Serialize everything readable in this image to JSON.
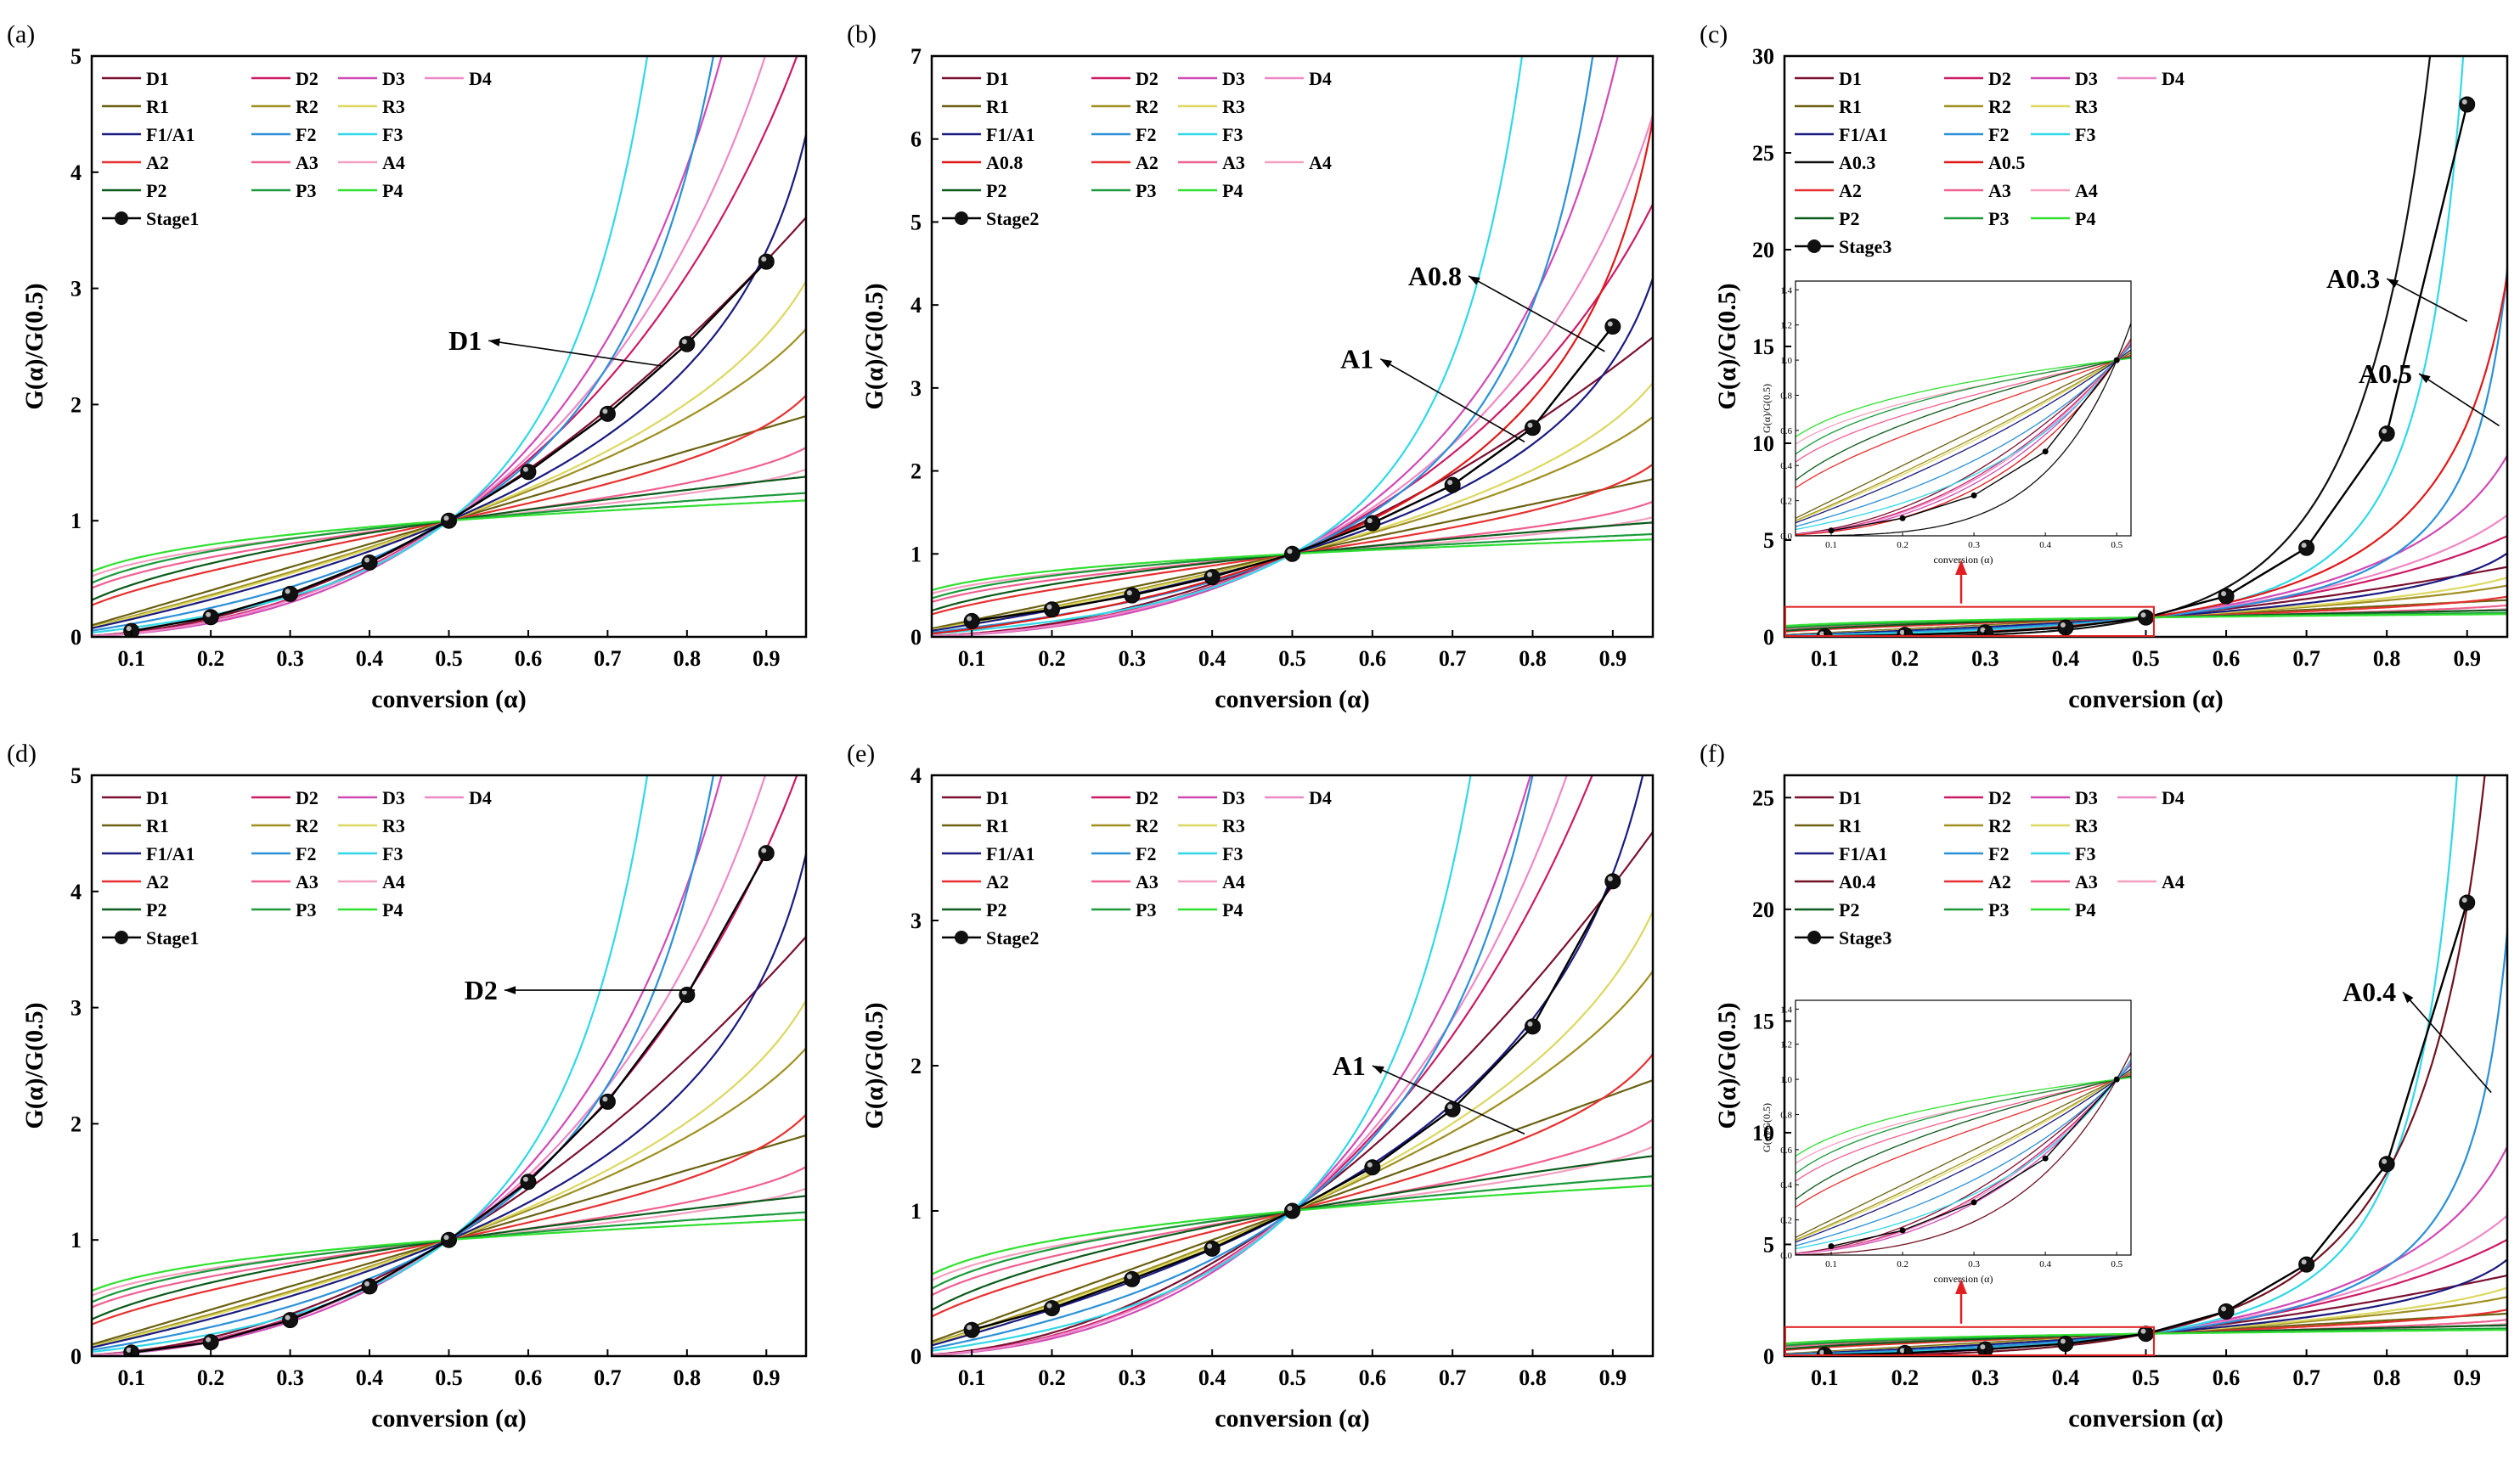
{
  "figure": {
    "colors": {
      "D1": "#7a1030",
      "D2": "#cc1a66",
      "D3": "#d04ab6",
      "D4": "#ee88c6",
      "R1": "#6a6010",
      "R2": "#a09020",
      "R3": "#dcd860",
      "F1/A1": "#1a1a80",
      "F2": "#2a90d8",
      "F3": "#30d8e8",
      "A0.3": "#101010",
      "A0.4": "#701020",
      "A0.5": "#e01818",
      "A0.8": "#e01818",
      "A2": "#e83030",
      "A3": "#f06090",
      "A4": "#f4a0c0",
      "P2": "#0a5a1a",
      "P3": "#1a9a3a",
      "P4": "#30e030",
      "stage": "#000000",
      "inset_box": "#e02020"
    },
    "x_tick_values": [
      0.1,
      0.2,
      0.3,
      0.4,
      0.5,
      0.6,
      0.7,
      0.8,
      0.9
    ],
    "x_tick_labels": [
      "0.1",
      "0.2",
      "0.3",
      "0.4",
      "0.5",
      "0.6",
      "0.7",
      "0.8",
      "0.9"
    ],
    "x_title": "conversion (α)",
    "y_title": "G(α)/G(0.5)",
    "inset_x_title": "conversion (α)",
    "inset_y_title": "G(α)/G(0.5)"
  },
  "chart_data": [
    {
      "panel": "(a)",
      "type": "line",
      "xlim": [
        0.05,
        0.95
      ],
      "ylim": [
        0,
        5
      ],
      "yticks": [
        "0",
        "1",
        "2",
        "3",
        "4",
        "5"
      ],
      "legend_rows": [
        [
          "D1",
          "D2",
          "D3",
          "D4"
        ],
        [
          "R1",
          "R2",
          "R3"
        ],
        [
          "F1/A1",
          "F2",
          "F3"
        ],
        [
          "A2",
          "A3",
          "A4"
        ],
        [
          "P2",
          "P3",
          "P4"
        ]
      ],
      "stage_label": "Stage1",
      "stage_x": [
        0.1,
        0.2,
        0.3,
        0.4,
        0.5,
        0.6,
        0.7,
        0.8,
        0.9
      ],
      "stage_y": [
        0.05,
        0.17,
        0.37,
        0.64,
        1.0,
        1.42,
        1.92,
        2.52,
        3.23
      ],
      "fit_model": "D1",
      "annotations": [
        {
          "text": "D1",
          "x": 0.55,
          "y": 2.55,
          "tx": 0.77,
          "ty": 2.33
        }
      ],
      "inset": false
    },
    {
      "panel": "(b)",
      "type": "line",
      "xlim": [
        0.05,
        0.95
      ],
      "ylim": [
        0,
        7
      ],
      "yticks": [
        "0",
        "1",
        "2",
        "3",
        "4",
        "5",
        "6",
        "7"
      ],
      "legend_rows": [
        [
          "D1",
          "D2",
          "D3",
          "D4"
        ],
        [
          "R1",
          "R2",
          "R3"
        ],
        [
          "F1/A1",
          "F2",
          "F3"
        ],
        [
          "A0.8",
          "A2",
          "A3",
          "A4"
        ],
        [
          "P2",
          "P3",
          "P4"
        ]
      ],
      "stage_label": "Stage2",
      "stage_x": [
        0.1,
        0.2,
        0.3,
        0.4,
        0.5,
        0.6,
        0.7,
        0.8,
        0.9
      ],
      "stage_y": [
        0.19,
        0.33,
        0.5,
        0.72,
        1.0,
        1.37,
        1.83,
        2.52,
        3.74
      ],
      "fit_model": "A0.8",
      "annotations": [
        {
          "text": "A0.8",
          "x": 0.72,
          "y": 4.35,
          "tx": 0.89,
          "ty": 3.44
        },
        {
          "text": "A1",
          "x": 0.61,
          "y": 3.35,
          "tx": 0.79,
          "ty": 2.35
        }
      ],
      "inset": false
    },
    {
      "panel": "(c)",
      "type": "line",
      "xlim": [
        0.05,
        0.95
      ],
      "ylim": [
        0,
        30
      ],
      "yticks": [
        "0",
        "5",
        "10",
        "15",
        "20",
        "25",
        "30"
      ],
      "legend_rows": [
        [
          "D1",
          "D2",
          "D3",
          "D4"
        ],
        [
          "R1",
          "R2",
          "R3"
        ],
        [
          "F1/A1",
          "F2",
          "F3"
        ],
        [
          "A0.3",
          "A0.5"
        ],
        [
          "A2",
          "A3",
          "A4"
        ],
        [
          "P2",
          "P3",
          "P4"
        ]
      ],
      "stage_label": "Stage3",
      "stage_x": [
        0.1,
        0.2,
        0.3,
        0.4,
        0.5,
        0.6,
        0.7,
        0.8,
        0.9
      ],
      "stage_y": [
        0.03,
        0.1,
        0.23,
        0.48,
        1.0,
        2.1,
        4.6,
        10.5,
        27.5
      ],
      "fit_model": "A0.3",
      "annotations": [
        {
          "text": "A0.3",
          "x": 0.8,
          "y": 18.5,
          "tx": 0.9,
          "ty": 16.3
        },
        {
          "text": "A0.5",
          "x": 0.84,
          "y": 13.6,
          "tx": 0.94,
          "ty": 10.9
        }
      ],
      "inset": true,
      "inset_box_ymax": 1.55
    },
    {
      "panel": "(d)",
      "type": "line",
      "xlim": [
        0.05,
        0.95
      ],
      "ylim": [
        0,
        5
      ],
      "yticks": [
        "0",
        "1",
        "2",
        "3",
        "4",
        "5"
      ],
      "legend_rows": [
        [
          "D1",
          "D2",
          "D3",
          "D4"
        ],
        [
          "R1",
          "R2",
          "R3"
        ],
        [
          "F1/A1",
          "F2",
          "F3"
        ],
        [
          "A2",
          "A3",
          "A4"
        ],
        [
          "P2",
          "P3",
          "P4"
        ]
      ],
      "stage_label": "Stage1",
      "stage_x": [
        0.1,
        0.2,
        0.3,
        0.4,
        0.5,
        0.6,
        0.7,
        0.8,
        0.9
      ],
      "stage_y": [
        0.03,
        0.12,
        0.31,
        0.6,
        1.0,
        1.5,
        2.19,
        3.11,
        4.33
      ],
      "fit_model": "D2",
      "annotations": [
        {
          "text": "D2",
          "x": 0.57,
          "y": 3.15,
          "tx": 0.81,
          "ty": 3.15
        }
      ],
      "inset": false
    },
    {
      "panel": "(e)",
      "type": "line",
      "xlim": [
        0.05,
        0.95
      ],
      "ylim": [
        0,
        4
      ],
      "yticks": [
        "0",
        "1",
        "2",
        "3",
        "4"
      ],
      "legend_rows": [
        [
          "D1",
          "D2",
          "D3",
          "D4"
        ],
        [
          "R1",
          "R2",
          "R3"
        ],
        [
          "F1/A1",
          "F2",
          "F3"
        ],
        [
          "A2",
          "A3",
          "A4"
        ],
        [
          "P2",
          "P3",
          "P4"
        ]
      ],
      "stage_label": "Stage2",
      "stage_x": [
        0.1,
        0.2,
        0.3,
        0.4,
        0.5,
        0.6,
        0.7,
        0.8,
        0.9
      ],
      "stage_y": [
        0.18,
        0.33,
        0.53,
        0.74,
        1.0,
        1.3,
        1.7,
        2.27,
        3.27
      ],
      "fit_model": "F1/A1",
      "annotations": [
        {
          "text": "A1",
          "x": 0.6,
          "y": 2.0,
          "tx": 0.79,
          "ty": 1.53
        }
      ],
      "inset": false
    },
    {
      "panel": "(f)",
      "type": "line",
      "xlim": [
        0.05,
        0.95
      ],
      "ylim": [
        0,
        26
      ],
      "yticks": [
        "0",
        "5",
        "10",
        "15",
        "20",
        "25"
      ],
      "legend_rows": [
        [
          "D1",
          "D2",
          "D3",
          "D4"
        ],
        [
          "R1",
          "R2",
          "R3"
        ],
        [
          "F1/A1",
          "F2",
          "F3"
        ],
        [
          "A0.4",
          "A2",
          "A3",
          "A4"
        ],
        [
          "P2",
          "P3",
          "P4"
        ]
      ],
      "stage_label": "Stage3",
      "stage_x": [
        0.1,
        0.2,
        0.3,
        0.4,
        0.5,
        0.6,
        0.7,
        0.8,
        0.9
      ],
      "stage_y": [
        0.05,
        0.14,
        0.3,
        0.55,
        1.0,
        2.0,
        4.1,
        8.6,
        20.3
      ],
      "fit_model": "A0.4",
      "annotations": [
        {
          "text": "A0.4",
          "x": 0.82,
          "y": 16.3,
          "tx": 0.93,
          "ty": 11.8
        }
      ],
      "inset": true,
      "inset_box_ymax": 1.3
    }
  ]
}
